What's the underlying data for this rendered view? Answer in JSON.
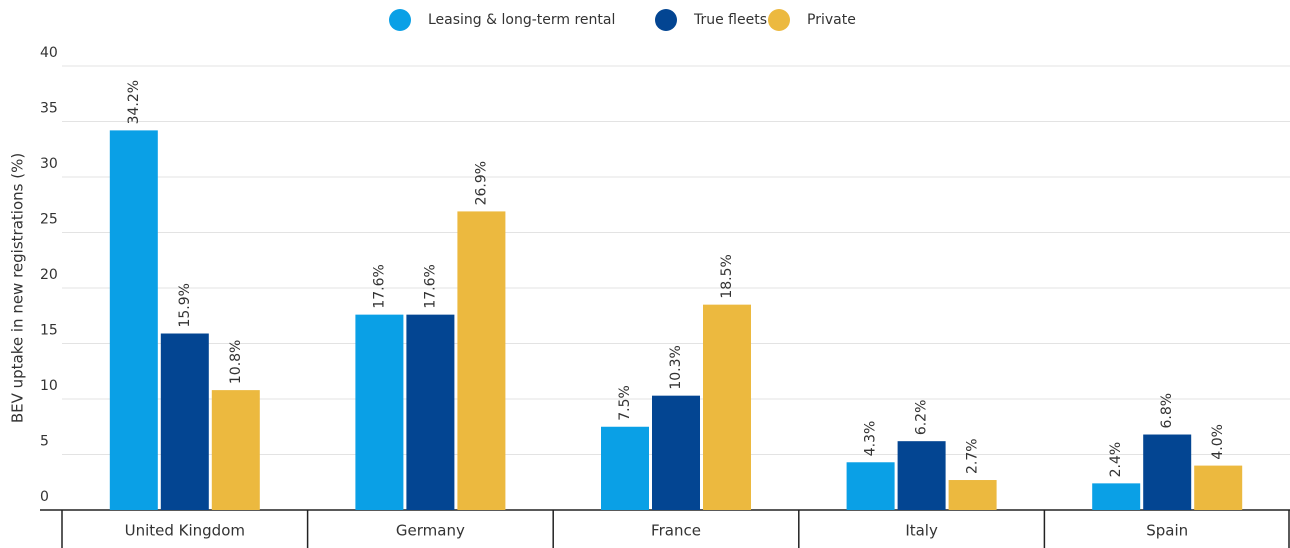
{
  "chart_data": {
    "type": "bar",
    "y_label": "BEV uptake in new registrations (%)",
    "categories": [
      "United Kingdom",
      "Germany",
      "France",
      "Italy",
      "Spain"
    ],
    "series": [
      {
        "name": "Leasing & long-term rental",
        "color": "#0aa0e6",
        "values": [
          34.2,
          17.6,
          7.5,
          4.3,
          2.4
        ],
        "value_labels": [
          "34.2%",
          "17.6%",
          "7.5%",
          "4.3%",
          "2.4%"
        ]
      },
      {
        "name": "True fleets",
        "color": "#034592",
        "values": [
          15.9,
          17.6,
          10.3,
          6.2,
          6.8
        ],
        "value_labels": [
          "15.9%",
          "17.6%",
          "10.3%",
          "6.2%",
          "6.8%"
        ]
      },
      {
        "name": "Private",
        "color": "#ecb93f",
        "values": [
          10.8,
          26.9,
          18.5,
          2.7,
          4.0
        ],
        "value_labels": [
          "10.8%",
          "26.9%",
          "18.5%",
          "2.7%",
          "4.0%"
        ]
      }
    ],
    "ylim": [
      0,
      40
    ],
    "yticks": [
      0,
      5,
      10,
      15,
      20,
      25,
      30,
      35,
      40
    ],
    "grid": true,
    "legend": "top"
  }
}
